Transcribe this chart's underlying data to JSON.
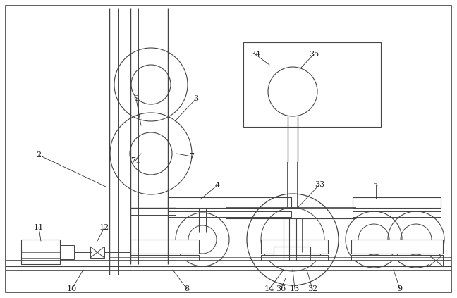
{
  "background_color": "#ffffff",
  "line_color": "#444444",
  "label_color": "#222222",
  "figsize": [
    6.48,
    4.23
  ],
  "dpi": 100
}
